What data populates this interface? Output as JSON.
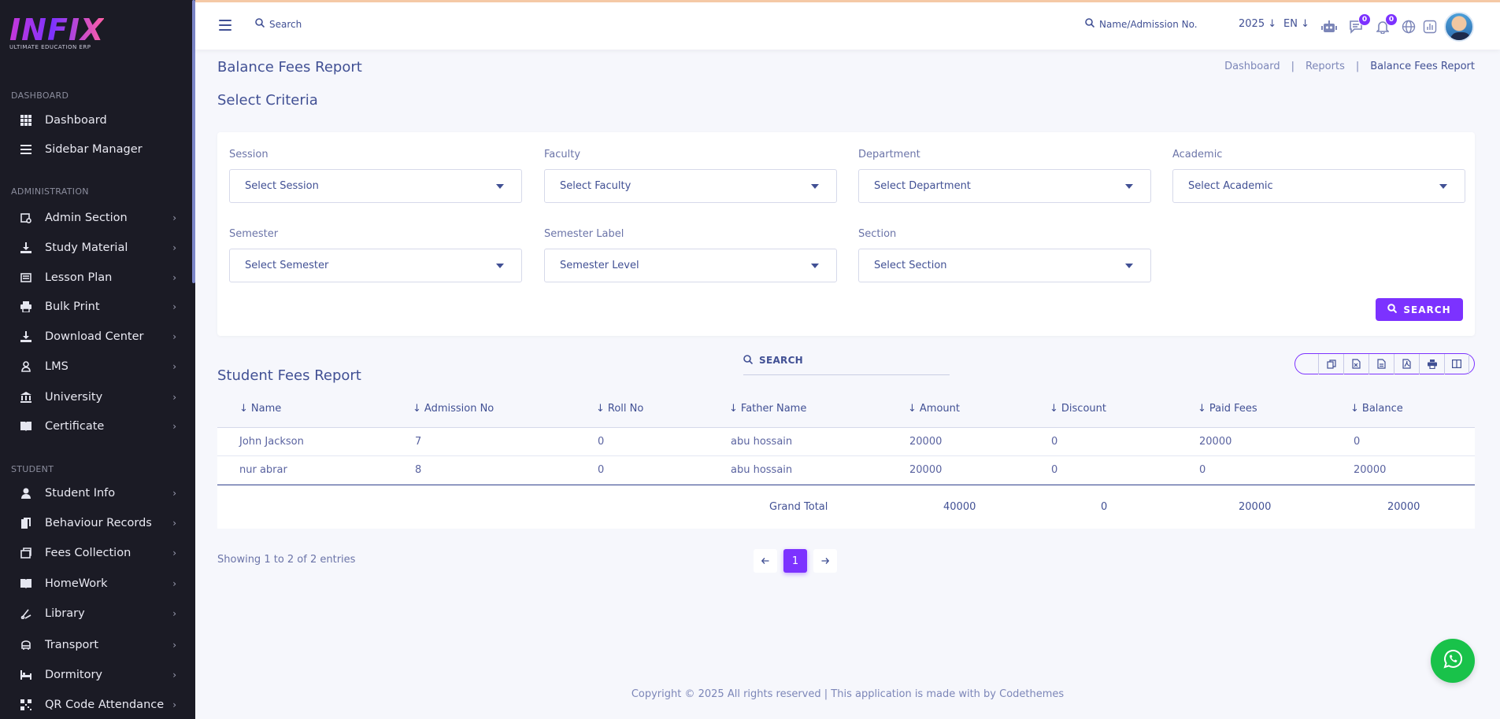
{
  "app": {
    "logo_text": "INFIX",
    "logo_subtitle": "ULTIMATE EDUCATION ERP",
    "accent_color": "#7c32ff",
    "sidebar_bg": "#1b1b25"
  },
  "sidebar": {
    "sections": [
      {
        "title": "DASHBOARD"
      },
      {
        "title": "ADMINISTRATION"
      },
      {
        "title": "STUDENT"
      }
    ],
    "items": [
      {
        "label": "Dashboard",
        "icon": "grid-icon"
      },
      {
        "label": "Sidebar Manager",
        "icon": "bars-icon"
      },
      {
        "label": "Admin Section",
        "icon": "admin-icon"
      },
      {
        "label": "Study Material",
        "icon": "download-icon"
      },
      {
        "label": "Lesson Plan",
        "icon": "list-icon"
      },
      {
        "label": "Bulk Print",
        "icon": "print-icon"
      },
      {
        "label": "Download Center",
        "icon": "download-icon"
      },
      {
        "label": "LMS",
        "icon": "lms-icon"
      },
      {
        "label": "University",
        "icon": "university-icon"
      },
      {
        "label": "Certificate",
        "icon": "book-icon"
      },
      {
        "label": "Student Info",
        "icon": "user-icon"
      },
      {
        "label": "Behaviour Records",
        "icon": "file-icon"
      },
      {
        "label": "Fees Collection",
        "icon": "fees-icon"
      },
      {
        "label": "HomeWork",
        "icon": "book-icon"
      },
      {
        "label": "Library",
        "icon": "library-icon"
      },
      {
        "label": "Transport",
        "icon": "bus-icon"
      },
      {
        "label": "Dormitory",
        "icon": "bed-icon"
      },
      {
        "label": "QR Code Attendance",
        "icon": "qr-icon"
      }
    ]
  },
  "header": {
    "search_label": "Search",
    "admission_search_label": "Name/Admission No.",
    "year": "2025",
    "language": "EN",
    "messages_count": "0",
    "notifications_count": "0"
  },
  "page": {
    "title": "Balance Fees Report",
    "breadcrumb": [
      "Dashboard",
      "Reports",
      "Balance Fees Report"
    ],
    "criteria_title": "Select Criteria"
  },
  "filters": {
    "session": {
      "label": "Session",
      "value": "Select Session"
    },
    "faculty": {
      "label": "Faculty",
      "value": "Select Faculty"
    },
    "department": {
      "label": "Department",
      "value": "Select Department"
    },
    "academic": {
      "label": "Academic",
      "value": "Select Academic"
    },
    "semester": {
      "label": "Semester",
      "value": "Select Semester"
    },
    "semester_label": {
      "label": "Semester Label",
      "value": "Semester Level"
    },
    "section": {
      "label": "Section",
      "value": "Select Section"
    },
    "search_button": "SEARCH"
  },
  "report": {
    "title": "Student Fees Report",
    "search_label": "SEARCH",
    "columns": [
      "Name",
      "Admission No",
      "Roll No",
      "Father Name",
      "Amount",
      "Discount",
      "Paid Fees",
      "Balance"
    ],
    "rows": [
      [
        "John Jackson",
        "7",
        "0",
        "abu hossain",
        "20000",
        "0",
        "20000",
        "0"
      ],
      [
        "nur abrar",
        "8",
        "0",
        "abu hossain",
        "20000",
        "0",
        "0",
        "20000"
      ]
    ],
    "totals": {
      "label": "Grand Total",
      "amount": "40000",
      "discount": "0",
      "paid": "20000",
      "balance": "20000"
    },
    "entries_text": "Showing 1 to 2 of 2 entries",
    "current_page": "1"
  },
  "footer": {
    "text": "Copyright © 2025 All rights reserved | This application is made with by Codethemes"
  }
}
